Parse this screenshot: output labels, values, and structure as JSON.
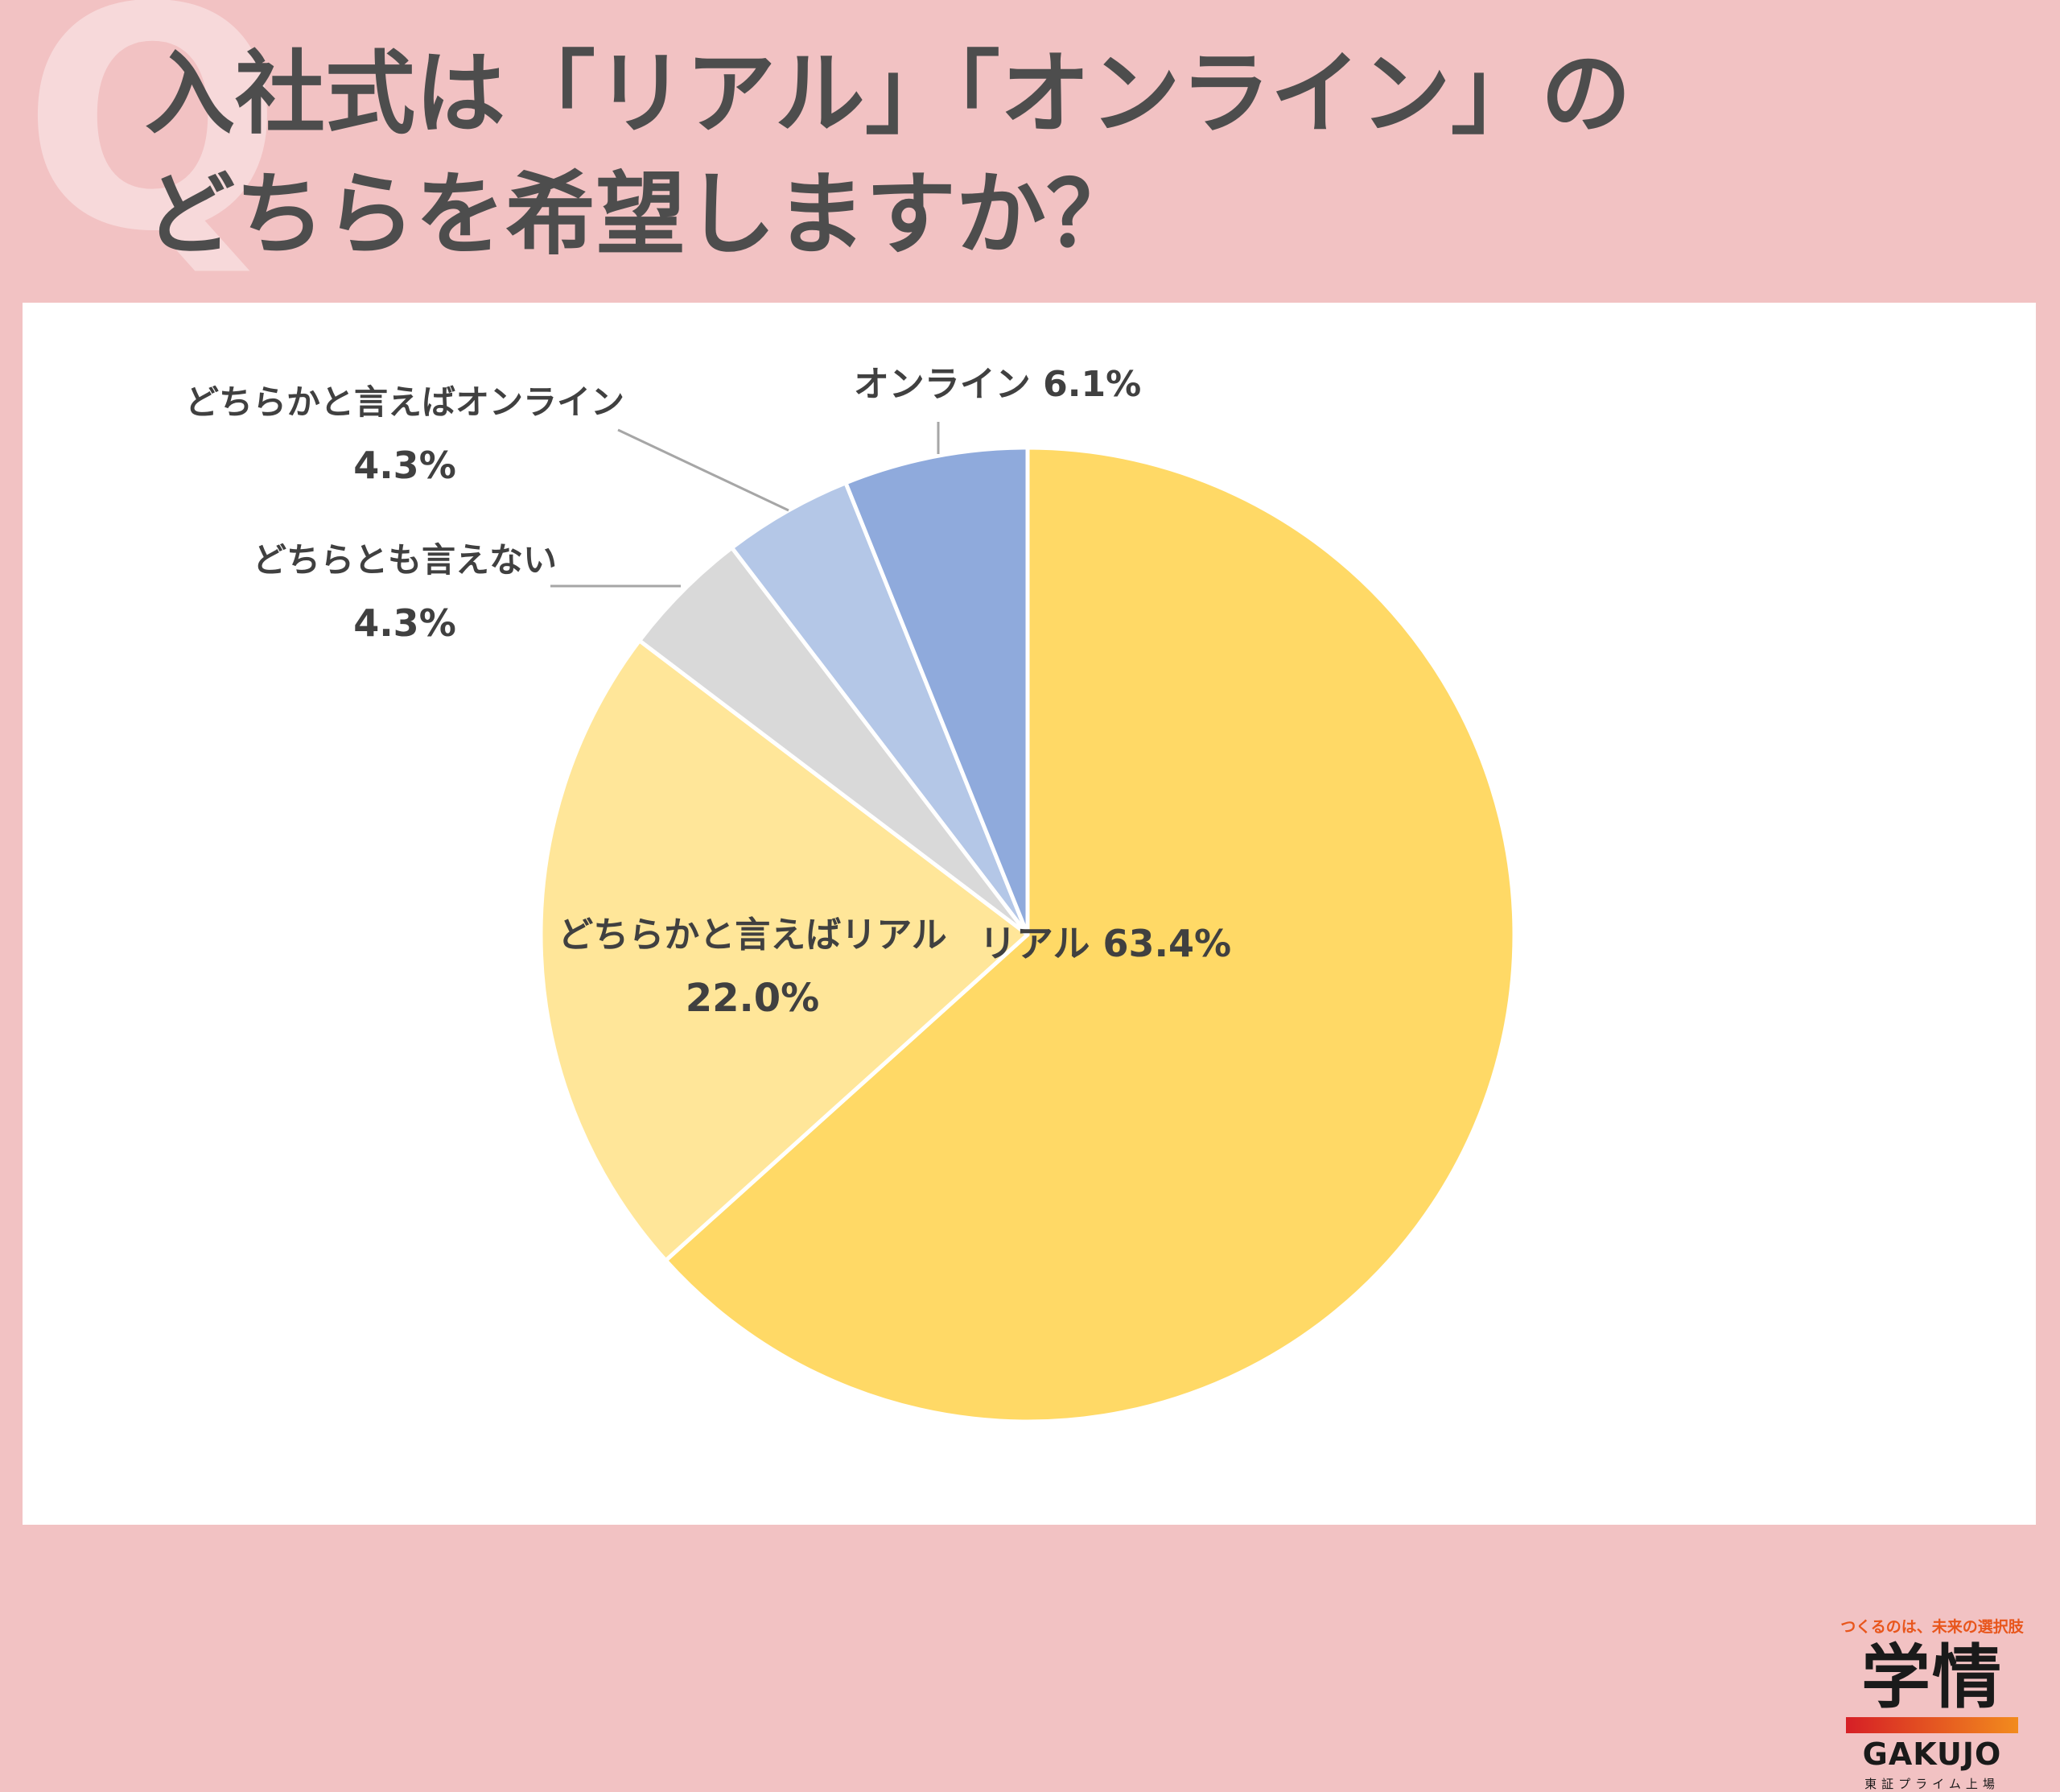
{
  "header": {
    "q_mark": "Q",
    "title_line1": "入社式は「リアル」「オンライン」の",
    "title_line2": "どちらを希望しますか？"
  },
  "chart_data": {
    "type": "pie",
    "title": "入社式は「リアル」「オンライン」のどちらを希望しますか？",
    "unit": "%",
    "start": "12 o'clock, clockwise",
    "slices": [
      {
        "label": "リアル",
        "value": 63.4,
        "value_text": "63.4%",
        "color": "#ffd966"
      },
      {
        "label": "どちらかと言えばリアル",
        "value": 22.0,
        "value_text": "22.0%",
        "color": "#ffe699"
      },
      {
        "label": "どちらとも言えない",
        "value": 4.3,
        "value_text": "4.3%",
        "color": "#d9d9d9"
      },
      {
        "label": "どちらかと言えばオンライン",
        "value": 4.3,
        "value_text": "4.3%",
        "color": "#b4c7e7"
      },
      {
        "label": "オンライン",
        "value": 6.1,
        "value_text": "6.1%",
        "color": "#8faadc"
      }
    ]
  },
  "logo": {
    "tagline": "つくるのは、未来の選択肢",
    "name_ja": "学情",
    "name_en": "GAKUJO",
    "sub": "東証プライム上場"
  }
}
